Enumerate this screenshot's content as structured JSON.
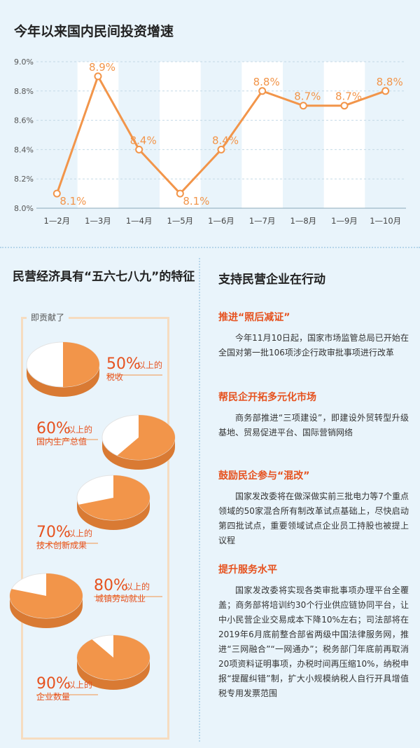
{
  "chart_data": [
    {
      "type": "line",
      "title": "今年以来国内民间投资增速",
      "categories": [
        "1—2月",
        "1—3月",
        "1—4月",
        "1—5月",
        "1—6月",
        "1—7月",
        "1—8月",
        "1—9月",
        "1—10月"
      ],
      "values": [
        8.1,
        8.9,
        8.4,
        8.1,
        8.4,
        8.8,
        8.7,
        8.7,
        8.8
      ],
      "data_labels": [
        "8.1%",
        "8.9%",
        "8.4%",
        "8.1%",
        "8.4%",
        "8.8%",
        "8.7%",
        "8.7%",
        "8.8%"
      ],
      "ylim": [
        8.0,
        9.0
      ],
      "yticks": [
        "8.0%",
        "8.2%",
        "8.4%",
        "8.6%",
        "8.8%",
        "9.0%"
      ],
      "grid": true,
      "colors": {
        "line": "#f2954a",
        "band": "#ffffff",
        "label": "#f2954a"
      }
    },
    {
      "type": "pie",
      "title": "民营经济具有“五六七八九”的特征",
      "group_label": "即贡献了",
      "items": [
        {
          "pct": "50%",
          "suffix": "以上的",
          "desc": "税收",
          "value": 50
        },
        {
          "pct": "60%",
          "suffix": "以上的",
          "desc": "国内生产总值",
          "value": 60
        },
        {
          "pct": "70%",
          "suffix": "以上的",
          "desc": "技术创新成果",
          "value": 70
        },
        {
          "pct": "80%",
          "suffix": "以上的",
          "desc": "城镇劳动就业",
          "value": 80
        },
        {
          "pct": "90%",
          "suffix": "以上的",
          "desc": "企业数量",
          "value": 90
        }
      ],
      "colors": {
        "slice": "#f2954a",
        "rest": "#ffffff",
        "side": "#d97a33",
        "rest_side": "#c9c9c9",
        "text": "#e6521f"
      }
    }
  ],
  "measures": {
    "title": "支持民营企业在行动",
    "items": [
      {
        "heading": "推进“照后减证”",
        "body": "今年11月10日起，国家市场监管总局已开始在全国对第一批106项涉企行政审批事项进行改革"
      },
      {
        "heading": "帮民企开拓多元化市场",
        "body": "商务部推进“三项建设”，即建设外贸转型升级基地、贸易促进平台、国际营销网络"
      },
      {
        "heading": "鼓励民企参与“混改”",
        "body": "国家发改委将在做深做实前三批电力等7个重点领域的50家混合所有制改革试点基础上，尽快启动第四批试点，重要领域试点企业员工持股也被提上议程"
      },
      {
        "heading": "提升服务水平",
        "body": "国家发改委将实现各类审批事项办理平台全覆盖；商务部将培训约30个行业供应链协同平台，让中小民营企业交易成本下降10%左右；司法部将在2019年6月底前整合部省两级中国法律服务网，推进“三网融合”“一网通办”；税务部门年底前再取消20项资料证明事项，办税时间再压缩10%，纳税申报“提醒纠错”制，扩大小规模纳税人自行开具增值税专用发票范围"
      }
    ]
  }
}
